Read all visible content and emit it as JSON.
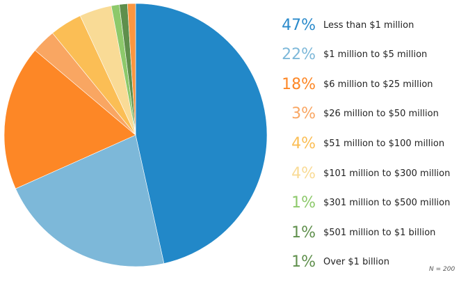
{
  "chart_data": {
    "type": "pie",
    "title": "",
    "start_angle": "12 o'clock, clockwise",
    "series": [
      {
        "pct_label": "47%",
        "label": "Less than $1 million",
        "value": 47,
        "color": "#2288C8",
        "label_color": "#2A8ACB",
        "slice_color": "#2288C8"
      },
      {
        "pct_label": "22%",
        "label": "$1 million to $5 million",
        "value": 22,
        "color": "#7DB8D9",
        "label_color": "#7DB8D9",
        "slice_color": "#7DB8D9"
      },
      {
        "pct_label": "18%",
        "label": "$6 million to $25 million",
        "value": 18,
        "color": "#FD8726",
        "label_color": "#FD8726",
        "slice_color": "#FD8726"
      },
      {
        "pct_label": "3%",
        "label": "$26 million to $50 million",
        "value": 3,
        "color": "#F9A662",
        "label_color": "#F9A662",
        "slice_color": "#F9A662"
      },
      {
        "pct_label": "4%",
        "label": "$51 million to $100 million",
        "value": 4,
        "color": "#FBBE55",
        "label_color": "#FBBE55",
        "slice_color": "#FBBE55"
      },
      {
        "pct_label": "4%",
        "label": "$101 million to $300 million",
        "value": 4,
        "color": "#F9DB96",
        "label_color": "#F9DB96",
        "slice_color": "#F9DB96"
      },
      {
        "pct_label": "1%",
        "label": "$301 million to $500 million",
        "value": 1,
        "color": "#8DC96B",
        "label_color": "#8DC96B",
        "slice_color": "#8DC96B"
      },
      {
        "pct_label": "1%",
        "label": "$501 million to $1 billion",
        "value": 1,
        "color": "#5F8F4C",
        "label_color": "#5F8F4C",
        "slice_color": "#5F8F4C"
      },
      {
        "pct_label": "1%",
        "label": "Over $1 billion",
        "value": 1,
        "color": "#FC9640",
        "label_color": "#5F8F4C",
        "slice_color": "#FC9640"
      }
    ],
    "note": "N = 200"
  }
}
